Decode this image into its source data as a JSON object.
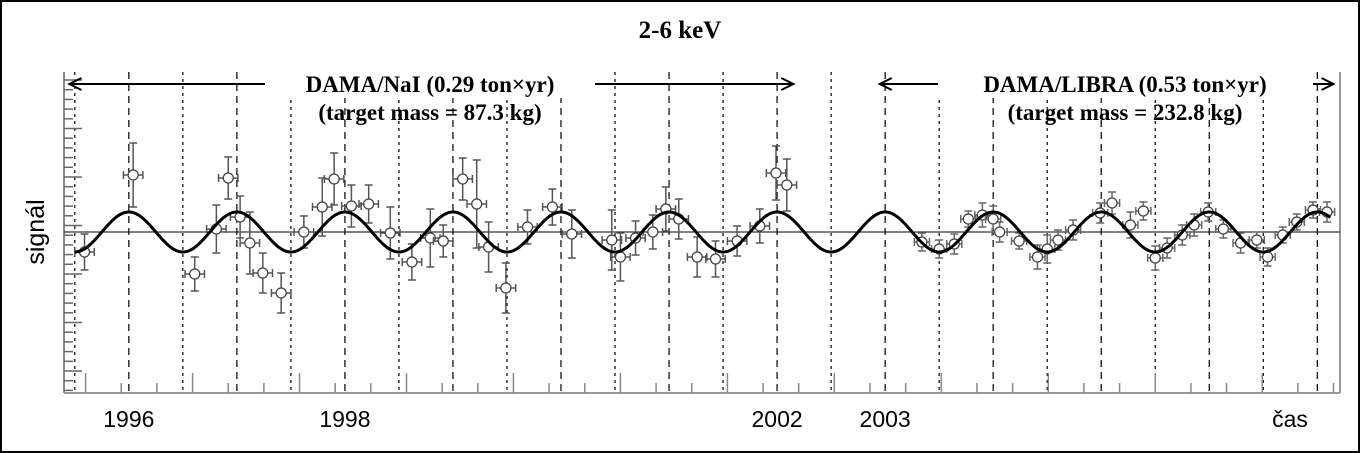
{
  "chart_data": {
    "type": "scatter",
    "title": "2-6 keV",
    "xlabel": "čas",
    "ylabel": "signál",
    "xlim": [
      1995.4,
      2007.21
    ],
    "ylim": [
      -8,
      8
    ],
    "grid": "vertical dashed lines at yearly maxima, dotted lines at minima",
    "x_tick_labels": [
      {
        "value": 1996,
        "text": "1996"
      },
      {
        "value": 1998,
        "text": "1998"
      },
      {
        "value": 2002,
        "text": "2002"
      },
      {
        "value": 2003,
        "text": "2003"
      }
    ],
    "annotations": {
      "nai": {
        "label": "DAMA/NaI (0.29 ton×yr)",
        "mass": "(target mass = 87.3 kg)",
        "range": [
          1995.45,
          2002.15
        ]
      },
      "libra": {
        "label": "DAMA/LIBRA (0.53 ton×yr)",
        "mass": "(target mass = 232.8 kg)",
        "range": [
          2002.95,
          2007.15
        ]
      }
    },
    "fit": {
      "type": "cosine",
      "amplitude": 1.0,
      "period": 1.0,
      "phase_peak_at_year_fraction": 0.0,
      "range": [
        1995.5,
        2007.12
      ]
    },
    "series": [
      {
        "name": "DAMA/NaI",
        "x_err": 0.09,
        "points": [
          [
            1995.59,
            -1.0,
            0.9
          ],
          [
            1996.04,
            2.85,
            1.6
          ],
          [
            1996.61,
            -2.1,
            0.85
          ],
          [
            1996.81,
            0.15,
            1.2
          ],
          [
            1996.92,
            2.7,
            1.05
          ],
          [
            1997.03,
            0.75,
            1.05
          ],
          [
            1997.12,
            -0.55,
            1.55
          ],
          [
            1997.24,
            -2.05,
            1.0
          ],
          [
            1997.41,
            -3.05,
            1.0
          ],
          [
            1997.62,
            0.0,
            0.8
          ],
          [
            1997.79,
            1.25,
            1.45
          ],
          [
            1997.9,
            2.65,
            1.3
          ],
          [
            1998.06,
            1.3,
            1.05
          ],
          [
            1998.22,
            1.4,
            0.95
          ],
          [
            1998.42,
            -0.05,
            1.3
          ],
          [
            1998.62,
            -1.5,
            0.9
          ],
          [
            1998.79,
            -0.3,
            1.45
          ],
          [
            1998.91,
            -0.45,
            0.8
          ],
          [
            1999.09,
            2.65,
            1.05
          ],
          [
            1999.22,
            1.4,
            2.2
          ],
          [
            1999.33,
            -0.75,
            1.25
          ],
          [
            1999.49,
            -2.8,
            1.25
          ],
          [
            1999.69,
            0.25,
            0.85
          ],
          [
            1999.92,
            1.25,
            0.9
          ],
          [
            2000.1,
            -0.1,
            1.2
          ],
          [
            2000.47,
            -0.4,
            1.5
          ],
          [
            2000.55,
            -1.25,
            1.2
          ],
          [
            2000.69,
            -0.3,
            0.85
          ],
          [
            2000.85,
            0.0,
            0.85
          ],
          [
            2000.97,
            1.15,
            1.1
          ],
          [
            2001.09,
            0.65,
            1.0
          ],
          [
            2001.26,
            -1.25,
            1.0
          ],
          [
            2001.43,
            -1.35,
            0.9
          ],
          [
            2001.63,
            -0.45,
            0.75
          ],
          [
            2001.84,
            0.3,
            0.85
          ],
          [
            2001.99,
            2.95,
            1.35
          ],
          [
            2002.09,
            2.35,
            1.3
          ]
        ]
      },
      {
        "name": "DAMA/LIBRA",
        "x_err": 0.07,
        "points": [
          [
            2003.34,
            -0.5,
            0.45
          ],
          [
            2003.5,
            -0.85,
            0.45
          ],
          [
            2003.64,
            -0.6,
            0.5
          ],
          [
            2003.77,
            0.65,
            0.4
          ],
          [
            2003.9,
            0.85,
            0.6
          ],
          [
            2004.0,
            0.65,
            0.65
          ],
          [
            2004.06,
            0.0,
            0.5
          ],
          [
            2004.24,
            -0.45,
            0.4
          ],
          [
            2004.41,
            -1.25,
            0.6
          ],
          [
            2004.5,
            -0.85,
            0.7
          ],
          [
            2004.6,
            -0.4,
            0.5
          ],
          [
            2004.74,
            0.1,
            0.5
          ],
          [
            2004.99,
            0.95,
            0.5
          ],
          [
            2005.1,
            1.45,
            0.55
          ],
          [
            2005.27,
            0.35,
            0.65
          ],
          [
            2005.39,
            1.05,
            0.45
          ],
          [
            2005.5,
            -1.3,
            0.6
          ],
          [
            2005.61,
            -0.8,
            0.5
          ],
          [
            2005.75,
            -0.15,
            0.5
          ],
          [
            2005.86,
            0.35,
            0.55
          ],
          [
            2005.99,
            1.0,
            0.45
          ],
          [
            2006.13,
            0.15,
            0.45
          ],
          [
            2006.29,
            -0.55,
            0.5
          ],
          [
            2006.44,
            -0.4,
            0.4
          ],
          [
            2006.54,
            -1.25,
            0.45
          ],
          [
            2006.68,
            -0.15,
            0.4
          ],
          [
            2006.81,
            0.5,
            0.4
          ],
          [
            2006.96,
            1.1,
            0.4
          ],
          [
            2007.09,
            1.0,
            0.5
          ]
        ]
      }
    ]
  }
}
